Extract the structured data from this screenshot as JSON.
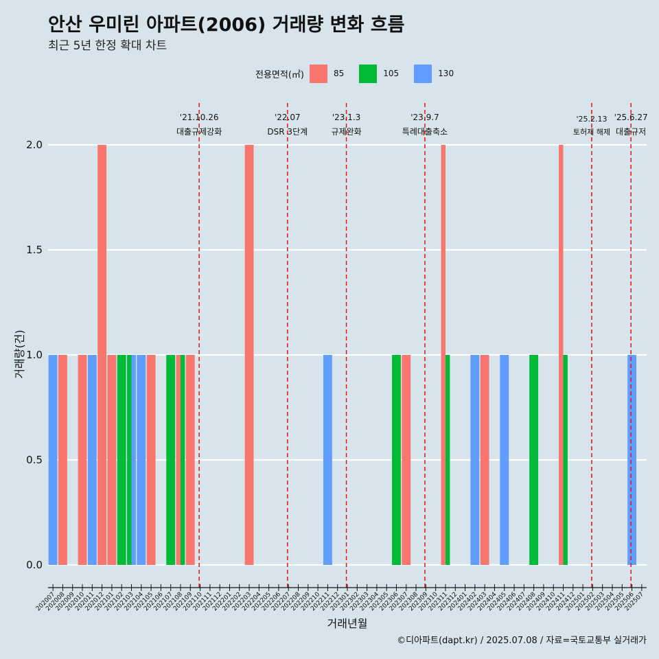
{
  "title": "안산 우미린 아파트(2006) 거래량 변화 흐름",
  "subtitle": "최근 5년 한정 확대 차트",
  "legend": {
    "title": "전용면적(㎡)",
    "items": [
      {
        "label": "85",
        "color": "#F8766D"
      },
      {
        "label": "105",
        "color": "#00BA38"
      },
      {
        "label": "130",
        "color": "#619CFF"
      }
    ]
  },
  "caption": "©디아파트(dapt.kr) / 2025.07.08 / 자료=국토교통부 실거래가",
  "chart_data": {
    "type": "bar",
    "xlabel": "거래년월",
    "ylabel": "거래량(건)",
    "ylim": [
      0,
      2
    ],
    "yticks": [
      "0.0",
      "0.5",
      "1.0",
      "1.5",
      "2.0"
    ],
    "grid": true,
    "legend_position": "top",
    "categories": [
      "202007",
      "202008",
      "202009",
      "202010",
      "202011",
      "202012",
      "202101",
      "202102",
      "202103",
      "202104",
      "202105",
      "202106",
      "202107",
      "202108",
      "202109",
      "202110",
      "202111",
      "202112",
      "202201",
      "202202",
      "202203",
      "202204",
      "202205",
      "202206",
      "202207",
      "202208",
      "202209",
      "202210",
      "202211",
      "202212",
      "202301",
      "202302",
      "202303",
      "202304",
      "202305",
      "202306",
      "202307",
      "202308",
      "202309",
      "202310",
      "202311",
      "202312",
      "202401",
      "202402",
      "202403",
      "202404",
      "202405",
      "202406",
      "202407",
      "202408",
      "202409",
      "202410",
      "202411",
      "202412",
      "202501",
      "202502",
      "202503",
      "202504",
      "202505",
      "202506",
      "202507"
    ],
    "series": [
      {
        "name": "85",
        "color": "#F8766D",
        "values": [
          0,
          1,
          0,
          1,
          0,
          2,
          1,
          0,
          0,
          0,
          1,
          0,
          0,
          1,
          1,
          0,
          0,
          0,
          0,
          0,
          2,
          0,
          0,
          0,
          0,
          0,
          0,
          0,
          0,
          0,
          0,
          0,
          0,
          0,
          0,
          0,
          1,
          0,
          0,
          0,
          2,
          0,
          0,
          0,
          1,
          0,
          0,
          0,
          0,
          0,
          0,
          0,
          2,
          0,
          0,
          0,
          0,
          0,
          0,
          0,
          0
        ]
      },
      {
        "name": "105",
        "color": "#00BA38",
        "values": [
          0,
          0,
          0,
          0,
          0,
          0,
          0,
          1,
          1,
          0,
          0,
          0,
          1,
          1,
          0,
          0,
          0,
          0,
          0,
          0,
          0,
          0,
          0,
          0,
          0,
          0,
          0,
          0,
          0,
          0,
          0,
          0,
          0,
          0,
          0,
          1,
          0,
          0,
          0,
          0,
          1,
          0,
          0,
          0,
          0,
          0,
          0,
          0,
          0,
          1,
          0,
          0,
          1,
          0,
          0,
          0,
          0,
          0,
          0,
          0,
          0
        ]
      },
      {
        "name": "130",
        "color": "#619CFF",
        "values": [
          1,
          0,
          0,
          0,
          1,
          0,
          0,
          0,
          1,
          1,
          0,
          0,
          0,
          0,
          0,
          0,
          0,
          0,
          0,
          0,
          0,
          0,
          0,
          0,
          0,
          0,
          0,
          0,
          1,
          0,
          0,
          0,
          0,
          0,
          0,
          0,
          0,
          0,
          0,
          0,
          0,
          0,
          0,
          1,
          0,
          0,
          1,
          0,
          0,
          0,
          0,
          0,
          0,
          0,
          0,
          0,
          0,
          0,
          0,
          1,
          0
        ]
      }
    ],
    "annotations": [
      {
        "x": 15.4,
        "date": "'21.10.26",
        "text": "대출규제강화"
      },
      {
        "x": 24.4,
        "date": "'22.07",
        "text": "DSR 3단계"
      },
      {
        "x": 30.4,
        "date": "'23.1.3",
        "text": "규제완화"
      },
      {
        "x": 38.4,
        "date": "'23.9.7",
        "text": "특례대출축소"
      },
      {
        "x": 55.4,
        "date": "'25.2.13",
        "text": "토허제 해제"
      },
      {
        "x": 59.4,
        "date": "'25.6.27",
        "text": "대출규저"
      }
    ]
  }
}
